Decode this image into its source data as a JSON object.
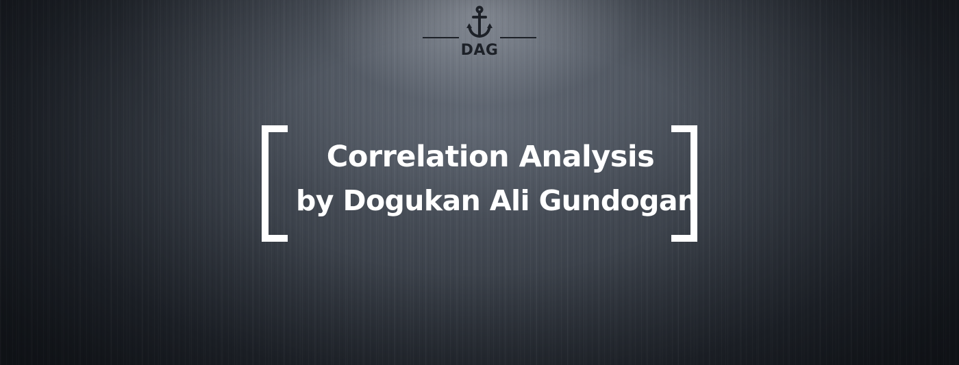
{
  "logo": {
    "text": "DAG",
    "icon": "anchor-icon",
    "color": "#1d2128"
  },
  "title": "Correlation Analysis",
  "subtitle": "by Dogukan Ali Gundogan",
  "colors": {
    "text": "#ffffff",
    "background": "#3a4049"
  }
}
